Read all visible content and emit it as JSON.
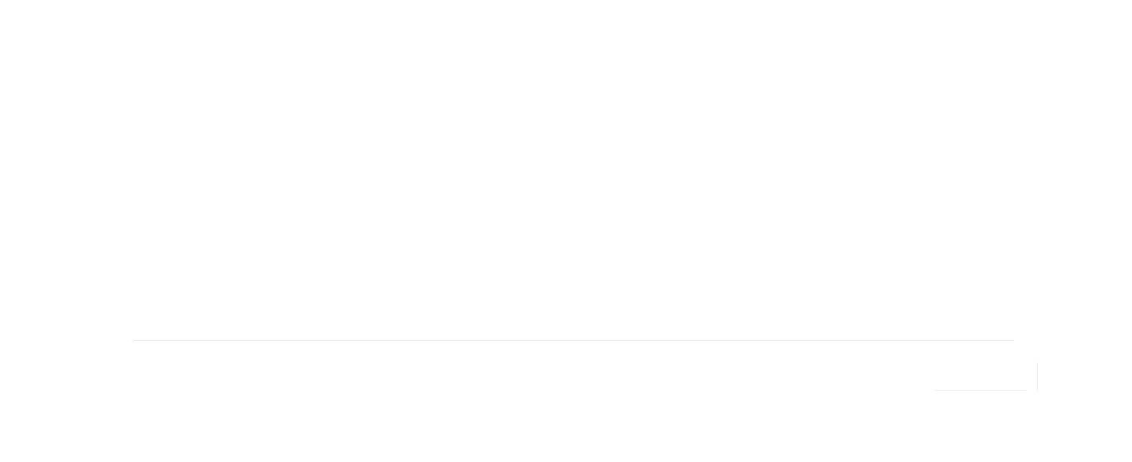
{
  "page": {
    "background_color": "#ffffff",
    "divider_color": "#eeeeee"
  },
  "footer": {
    "control_label": ""
  }
}
